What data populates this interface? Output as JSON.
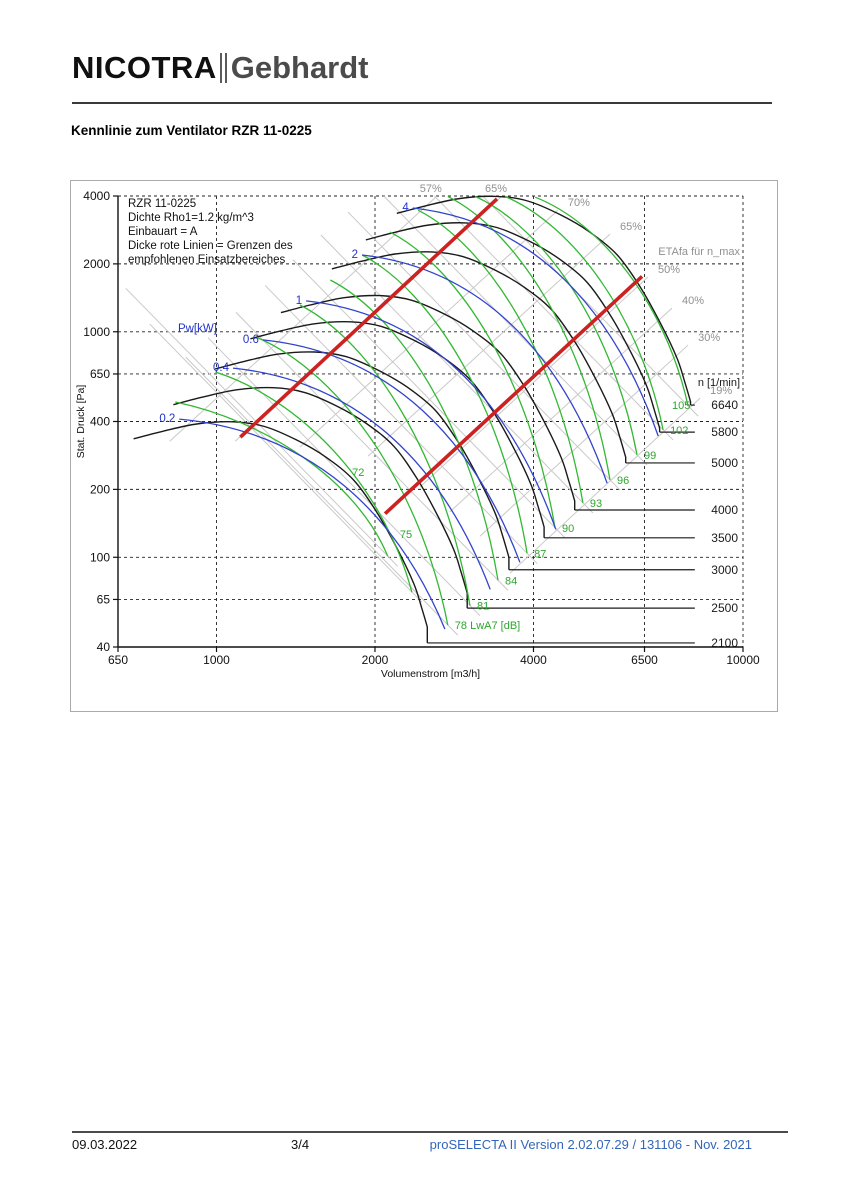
{
  "header": {
    "logo_left": "NICOTRA",
    "logo_right": "Gebhardt"
  },
  "page_title": "Kennlinie zum Ventilator RZR 11-0225",
  "footer": {
    "date": "09.03.2022",
    "page": "3/4",
    "app": "proSELECTA II   Version 2.02.07.29 / 131106 - Nov. 2021"
  },
  "chart_data": {
    "type": "line",
    "log_log": true,
    "xlabel": "Volumenstrom [m3/h]",
    "ylabel": "Stat. Druck [Pa]",
    "xticks": [
      650,
      1000,
      2000,
      4000,
      6500,
      10000
    ],
    "yticks": [
      40,
      65,
      100,
      200,
      400,
      650,
      1000,
      2000,
      4000
    ],
    "xlim": [
      650,
      10000
    ],
    "ylim": [
      40,
      4000
    ],
    "grid": "dashed",
    "legend_block": [
      "RZR 11-0225",
      "Dichte Rho1=1.2 kg/m^3",
      "Einbauart = A",
      " Dicke rote Linien = Grenzen des",
      " empfohlenen Einsatzbereiches"
    ],
    "labels": {
      "rpm_axis": "n [1/min]",
      "eta_note": "ETAfa für n_max",
      "power": "Pw[kW]",
      "noise_suffix": "LwA7 [dB]"
    },
    "rpm_curves": {
      "reference_rpm": 6640,
      "reference_points": [
        [
          2200,
          3350
        ],
        [
          2500,
          3620
        ],
        [
          2900,
          3900
        ],
        [
          3400,
          3985
        ],
        [
          3900,
          3800
        ],
        [
          4500,
          3300
        ],
        [
          5100,
          2780
        ],
        [
          5770,
          2190
        ],
        [
          6400,
          1560
        ],
        [
          7000,
          1070
        ],
        [
          7500,
          760
        ],
        [
          7750,
          600
        ],
        [
          7950,
          490
        ]
      ],
      "leader_end_q": 8100,
      "speeds": [
        {
          "rpm": 2100,
          "end_p": 41.7
        },
        {
          "rpm": 2500,
          "end_p": 59.5
        },
        {
          "rpm": 3000,
          "end_p": 88
        },
        {
          "rpm": 3500,
          "end_p": 122
        },
        {
          "rpm": 4000,
          "end_p": 162
        },
        {
          "rpm": 5000,
          "end_p": 262
        },
        {
          "rpm": 5800,
          "end_p": 359
        },
        {
          "rpm": 6640,
          "end_p": 473
        }
      ]
    },
    "power_curves": [
      {
        "kw": "0.2",
        "start": [
          850,
          410
        ],
        "end": [
          2715,
          48
        ]
      },
      {
        "kw": "0.4",
        "start": [
          1075,
          690
        ],
        "end": [
          3310,
          72
        ]
      },
      {
        "kw": "0.6",
        "start": [
          1225,
          920
        ],
        "end": [
          3770,
          95
        ]
      },
      {
        "kw": "1",
        "start": [
          1480,
          1370
        ],
        "end": [
          4410,
          133
        ]
      },
      {
        "kw": "2",
        "start": [
          1890,
          2190
        ],
        "end": [
          5520,
          213
        ]
      },
      {
        "kw": "4",
        "start": [
          2360,
          3540
        ],
        "end": [
          6900,
          345
        ]
      }
    ],
    "power_label_anchor": [
      920,
      1000
    ],
    "noise_curves": [
      {
        "db": "72",
        "start": [
          835,
          488
        ],
        "end": [
          2115,
          101
        ],
        "label_at": [
          1810,
          229
        ]
      },
      {
        "db": "75",
        "start": [
          995,
          663
        ],
        "end": [
          2350,
          70
        ],
        "label_at": [
          2230,
          122
        ]
      },
      {
        "db": "78",
        "start": [
          1200,
          938
        ],
        "end": [
          2750,
          50
        ],
        "suffix": true
      },
      {
        "db": "81",
        "start": [
          1440,
          1314
        ],
        "end": [
          3030,
          61
        ]
      },
      {
        "db": "84",
        "start": [
          1645,
          1696
        ],
        "end": [
          3425,
          79
        ]
      },
      {
        "db": "87",
        "start": [
          1890,
          2190
        ],
        "end": [
          3890,
          104
        ]
      },
      {
        "db": "90",
        "start": [
          2135,
          2767
        ],
        "end": [
          4395,
          135
        ]
      },
      {
        "db": "93",
        "start": [
          2415,
          3460
        ],
        "end": [
          4965,
          174
        ]
      },
      {
        "db": "96",
        "start": [
          2750,
          3985
        ],
        "end": [
          5590,
          220
        ]
      },
      {
        "db": "99",
        "start": [
          3100,
          3985
        ],
        "end": [
          6290,
          284
        ]
      },
      {
        "db": "102",
        "start": [
          3530,
          3985
        ],
        "end": [
          7050,
          367
        ]
      },
      {
        "db": "105",
        "start": [
          4030,
          3950
        ],
        "end": [
          7865,
          468
        ],
        "label_at": [
          7330,
          455
        ]
      }
    ],
    "efficiency_lines": [
      {
        "label": "57%",
        "top": [
          2620,
          3990
        ],
        "bottom": [
          815,
          327
        ],
        "lpos": "above"
      },
      {
        "label": "65%",
        "top": [
          3485,
          3990
        ],
        "bottom": [
          1085,
          327
        ],
        "lpos": "above"
      },
      {
        "label": "70%",
        "top": [
          4450,
          3460
        ],
        "bottom": [
          1440,
          308
        ],
        "lpos": "right"
      },
      {
        "label": "65%",
        "top": [
          5590,
          2710
        ],
        "bottom": [
          1940,
          281
        ],
        "lpos": "right"
      },
      {
        "label": "50%",
        "top": [
          6600,
          1750
        ],
        "bottom": [
          2435,
          205
        ],
        "lpos": "right"
      },
      {
        "label": "40%",
        "top": [
          7330,
          1273
        ],
        "bottom": [
          2775,
          159
        ],
        "lpos": "right"
      },
      {
        "label": "30%",
        "top": [
          7865,
          873
        ],
        "bottom": [
          3165,
          124
        ],
        "lpos": "right"
      },
      {
        "label": "19%",
        "top": [
          8290,
          508
        ],
        "bottom": [
          3610,
          85
        ],
        "lpos": "right"
      }
    ],
    "limit_lines": [
      {
        "from": [
          1110,
          341
        ],
        "to": [
          3410,
          3880
        ]
      },
      {
        "from": [
          2090,
          156
        ],
        "to": [
          6430,
          1760
        ]
      }
    ],
    "colors": {
      "rpm_curve": "#1a1a1a",
      "power_curve": "#3344cc",
      "power_label": "#2233cc",
      "noise_curve": "#33b833",
      "noise_label": "#2fa52f",
      "efficiency_line": "#c9c9c9",
      "efficiency_label": "#909090",
      "limit_line": "#cc2222",
      "grid": "#222222",
      "axis": "#111111",
      "box": "#ababab"
    }
  }
}
